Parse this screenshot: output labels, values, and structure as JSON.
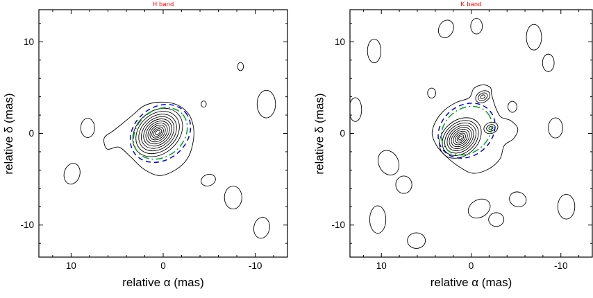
{
  "figure": {
    "background": "#ffffff",
    "title_color": "#ff0000",
    "contour_color": "#000000",
    "beam_blue": "#0000dd",
    "beam_green": "#00a020"
  },
  "chart_data": [
    {
      "type": "contour",
      "band": "H",
      "title": "H band",
      "xlabel": "relative α (mas)",
      "ylabel": "relative δ (mas)",
      "x_ticks": [
        10,
        0,
        -10
      ],
      "y_ticks": [
        -10,
        0,
        10
      ],
      "x_range": [
        13.5,
        -13.5
      ],
      "y_range": [
        -13.5,
        13.5
      ],
      "x_axis_reversed": true,
      "minor_tick_step": 2,
      "contour_color": "#000000",
      "core_contours": [
        {
          "cx": 0.6,
          "cy": 0.1,
          "angle": -42,
          "rings": [
            [
              3.0,
              2.3
            ],
            [
              2.62,
              2.0
            ],
            [
              2.28,
              1.74
            ],
            [
              1.98,
              1.5
            ],
            [
              1.7,
              1.28
            ],
            [
              1.44,
              1.07
            ],
            [
              1.19,
              0.87
            ],
            [
              0.95,
              0.68
            ],
            [
              0.72,
              0.5
            ],
            [
              0.5,
              0.34
            ],
            [
              0.3,
              0.19
            ]
          ]
        }
      ],
      "outer_contours": [
        {
          "points": [
            [
              0.6,
              3.4
            ],
            [
              2.1,
              3.0
            ],
            [
              3.2,
              2.1
            ],
            [
              4.4,
              1.1
            ],
            [
              5.4,
              0.3
            ],
            [
              6.4,
              -0.5
            ],
            [
              6.1,
              -1.7
            ],
            [
              4.8,
              -1.5
            ],
            [
              3.6,
              -2.5
            ],
            [
              2.1,
              -3.9
            ],
            [
              0.4,
              -4.6
            ],
            [
              -1.3,
              -4.0
            ],
            [
              -2.6,
              -2.8
            ],
            [
              -3.2,
              -1.2
            ],
            [
              -3.3,
              0.6
            ],
            [
              -2.7,
              2.2
            ],
            [
              -1.3,
              3.2
            ]
          ]
        }
      ],
      "noise_blobs": [
        {
          "cx": 8.2,
          "cy": 0.6,
          "rx": 0.75,
          "ry": 1.05,
          "angle": 0
        },
        {
          "cx": 9.9,
          "cy": -4.4,
          "rx": 0.85,
          "ry": 1.15,
          "angle": 15
        },
        {
          "cx": -8.4,
          "cy": 7.3,
          "rx": 0.32,
          "ry": 0.45,
          "angle": 0
        },
        {
          "cx": -4.4,
          "cy": 3.2,
          "rx": 0.28,
          "ry": 0.34,
          "angle": 0
        },
        {
          "cx": -11.2,
          "cy": 3.2,
          "rx": 1.0,
          "ry": 1.5,
          "angle": 0
        },
        {
          "cx": -7.6,
          "cy": -7.0,
          "rx": 0.95,
          "ry": 1.25,
          "angle": 0
        },
        {
          "cx": -10.7,
          "cy": -10.3,
          "rx": 0.85,
          "ry": 1.15,
          "angle": 10
        },
        {
          "cx": -4.9,
          "cy": -5.1,
          "rx": 0.8,
          "ry": 0.62,
          "angle": -20
        }
      ],
      "overlay_ellipses": [
        {
          "name": "blue-dashed-beam",
          "cx": 0.3,
          "cy": 0.0,
          "rx": 3.55,
          "ry": 2.85,
          "angle": -40,
          "color": "#0000dd",
          "dash": "7,5"
        },
        {
          "name": "green-dashdot-beam",
          "cx": 0.3,
          "cy": 0.0,
          "rx": 3.18,
          "ry": 2.52,
          "angle": -40,
          "color": "#00a020",
          "dash": "10,4,2,4"
        }
      ]
    },
    {
      "type": "contour",
      "band": "K",
      "title": "K band",
      "xlabel": "relative α (mas)",
      "ylabel": "relative δ (mas)",
      "x_ticks": [
        10,
        0,
        -10
      ],
      "y_ticks": [
        -10,
        0,
        10
      ],
      "x_range": [
        13.5,
        -13.5
      ],
      "y_range": [
        -13.5,
        13.5
      ],
      "x_axis_reversed": true,
      "minor_tick_step": 2,
      "contour_color": "#000000",
      "core_contours": [
        {
          "cx": 1.2,
          "cy": -0.5,
          "angle": -42,
          "rings": [
            [
              2.6,
              1.9
            ],
            [
              2.25,
              1.64
            ],
            [
              1.95,
              1.4
            ],
            [
              1.66,
              1.18
            ],
            [
              1.4,
              0.98
            ],
            [
              1.15,
              0.79
            ],
            [
              0.9,
              0.61
            ],
            [
              0.66,
              0.44
            ],
            [
              0.43,
              0.28
            ],
            [
              0.22,
              0.14
            ]
          ]
        },
        {
          "cx": -1.3,
          "cy": 4.0,
          "angle": -30,
          "rings": [
            [
              0.85,
              0.6
            ],
            [
              0.55,
              0.38
            ],
            [
              0.28,
              0.18
            ]
          ]
        },
        {
          "cx": -2.2,
          "cy": 0.6,
          "angle": -20,
          "rings": [
            [
              0.8,
              0.6
            ],
            [
              0.5,
              0.35
            ],
            [
              0.24,
              0.16
            ]
          ]
        }
      ],
      "outer_contours": [
        {
          "points": [
            [
              -1.3,
              5.3
            ],
            [
              -0.3,
              4.9
            ],
            [
              0.2,
              3.9
            ],
            [
              1.6,
              3.4
            ],
            [
              2.9,
              2.6
            ],
            [
              3.9,
              1.4
            ],
            [
              4.35,
              0.0
            ],
            [
              3.8,
              -1.4
            ],
            [
              2.8,
              -2.5
            ],
            [
              1.4,
              -3.6
            ],
            [
              -0.2,
              -4.35
            ],
            [
              -1.9,
              -3.9
            ],
            [
              -3.2,
              -2.8
            ],
            [
              -3.7,
              -1.3
            ],
            [
              -4.7,
              -0.6
            ],
            [
              -5.2,
              0.5
            ],
            [
              -4.4,
              1.4
            ],
            [
              -3.3,
              1.8
            ],
            [
              -2.7,
              2.9
            ],
            [
              -2.3,
              4.2
            ],
            [
              -2.15,
              5.0
            ]
          ]
        }
      ],
      "noise_blobs": [
        {
          "cx": 10.8,
          "cy": 9.0,
          "rx": 0.75,
          "ry": 1.3,
          "angle": 0
        },
        {
          "cx": 2.8,
          "cy": 11.4,
          "rx": 0.8,
          "ry": 1.0,
          "angle": 25
        },
        {
          "cx": -0.6,
          "cy": 11.7,
          "rx": 0.65,
          "ry": 0.85,
          "angle": 0
        },
        {
          "cx": -7.0,
          "cy": 10.5,
          "rx": 0.85,
          "ry": 1.4,
          "angle": 0
        },
        {
          "cx": -8.6,
          "cy": 7.7,
          "rx": 0.65,
          "ry": 0.95,
          "angle": 0
        },
        {
          "cx": 12.9,
          "cy": 2.6,
          "rx": 0.7,
          "ry": 1.3,
          "angle": 0
        },
        {
          "cx": 9.2,
          "cy": -3.2,
          "rx": 1.1,
          "ry": 1.4,
          "angle": -25
        },
        {
          "cx": 7.5,
          "cy": -5.6,
          "rx": 0.9,
          "ry": 0.95,
          "angle": 0
        },
        {
          "cx": 10.4,
          "cy": -9.4,
          "rx": 0.9,
          "ry": 1.5,
          "angle": 0
        },
        {
          "cx": 6.1,
          "cy": -11.7,
          "rx": 1.0,
          "ry": 0.85,
          "angle": 0
        },
        {
          "cx": -0.9,
          "cy": -8.2,
          "rx": 1.3,
          "ry": 0.95,
          "angle": -30
        },
        {
          "cx": -2.8,
          "cy": -9.4,
          "rx": 0.85,
          "ry": 0.75,
          "angle": 0
        },
        {
          "cx": -5.2,
          "cy": -7.2,
          "rx": 0.95,
          "ry": 0.8,
          "angle": 20
        },
        {
          "cx": -10.6,
          "cy": -8.0,
          "rx": 0.95,
          "ry": 1.35,
          "angle": 0
        },
        {
          "cx": -9.4,
          "cy": 0.6,
          "rx": 0.8,
          "ry": 1.1,
          "angle": 0
        },
        {
          "cx": 4.4,
          "cy": 4.4,
          "rx": 0.45,
          "ry": 0.55,
          "angle": 0
        },
        {
          "cx": -4.6,
          "cy": 2.9,
          "rx": 0.5,
          "ry": 0.6,
          "angle": 0
        }
      ],
      "overlay_ellipses": [
        {
          "name": "blue-dashed-beam",
          "cx": 0.5,
          "cy": 0.3,
          "rx": 3.4,
          "ry": 2.75,
          "angle": -40,
          "color": "#0000dd",
          "dash": "7,5"
        },
        {
          "name": "green-dashdot-beam",
          "cx": 0.5,
          "cy": 0.3,
          "rx": 3.05,
          "ry": 2.4,
          "angle": -40,
          "color": "#00a020",
          "dash": "10,4,2,4"
        }
      ]
    }
  ]
}
